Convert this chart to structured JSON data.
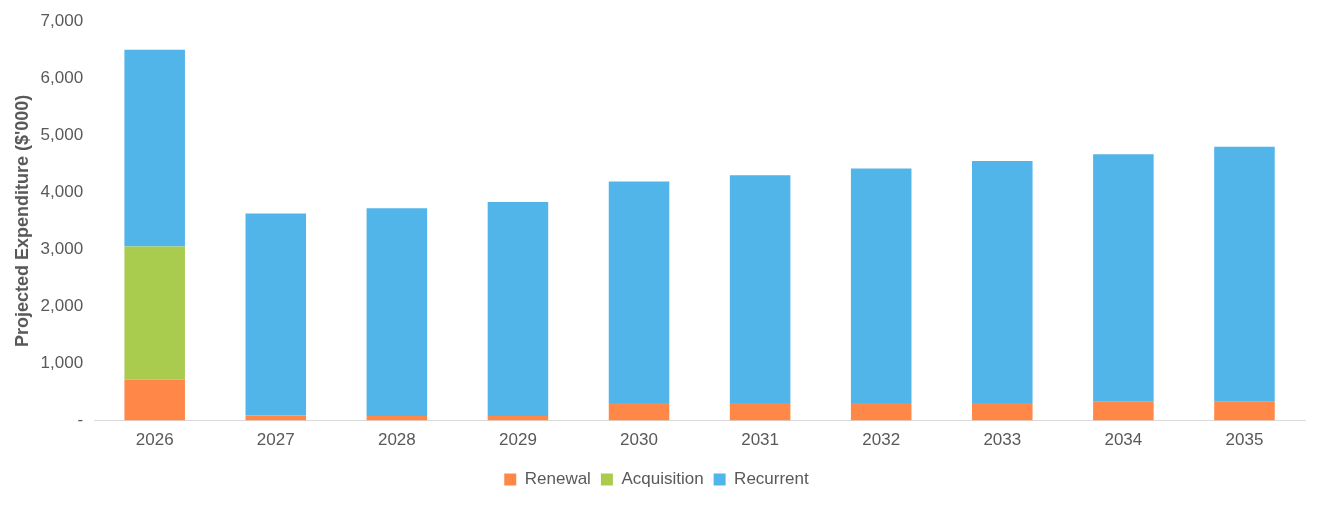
{
  "chart_data": {
    "type": "bar",
    "stacked": true,
    "ylabel": "Projected Expenditure ($'000)",
    "categories": [
      "2026",
      "2027",
      "2028",
      "2029",
      "2030",
      "2031",
      "2032",
      "2033",
      "2034",
      "2035"
    ],
    "series": [
      {
        "name": "Renewal",
        "color": "#ff8849",
        "values": [
          720,
          90,
          80,
          80,
          310,
          310,
          310,
          310,
          330,
          330
        ]
      },
      {
        "name": "Acquisition",
        "color": "#a9cc4f",
        "values": [
          2330,
          0,
          0,
          0,
          0,
          0,
          0,
          0,
          0,
          0
        ]
      },
      {
        "name": "Recurrent",
        "color": "#52b5ea",
        "values": [
          3450,
          3540,
          3640,
          3750,
          3880,
          3990,
          4110,
          4240,
          4340,
          4470
        ]
      }
    ],
    "ylim": [
      0,
      7000
    ],
    "yticks": [
      {
        "value": 0,
        "label": "-"
      },
      {
        "value": 1000,
        "label": "1,000"
      },
      {
        "value": 2000,
        "label": "2,000"
      },
      {
        "value": 3000,
        "label": "3,000"
      },
      {
        "value": 4000,
        "label": "4,000"
      },
      {
        "value": 5000,
        "label": "5,000"
      },
      {
        "value": 6000,
        "label": "6,000"
      },
      {
        "value": 7000,
        "label": "7,000"
      }
    ],
    "grid": false,
    "legend": "bottom"
  }
}
